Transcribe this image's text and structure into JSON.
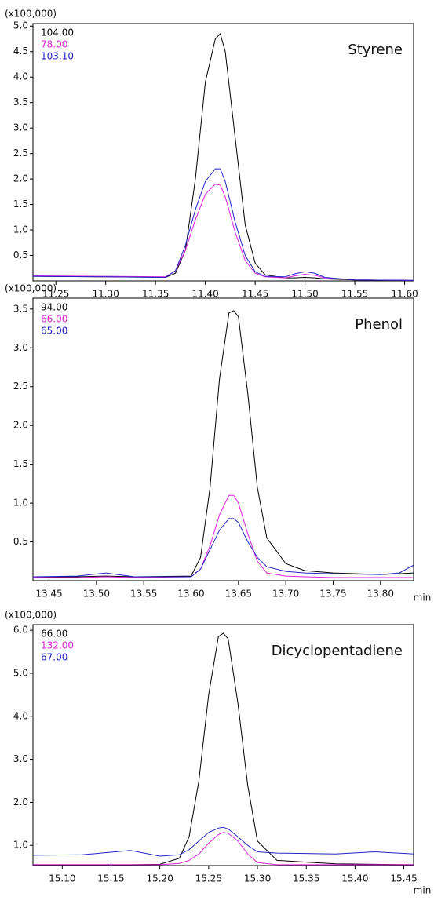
{
  "chart_data": [
    {
      "type": "line",
      "title": "Styrene",
      "y_label": "(x100,000)",
      "x": [
        11.227,
        11.3,
        11.36,
        11.37,
        11.38,
        11.39,
        11.4,
        11.41,
        11.415,
        11.42,
        11.43,
        11.44,
        11.45,
        11.46,
        11.48,
        11.49,
        11.5,
        11.51,
        11.52,
        11.55,
        11.609
      ],
      "series": [
        {
          "name": "104.00",
          "color": "#000000",
          "values": [
            0.09,
            0.08,
            0.07,
            0.15,
            0.6,
            2.0,
            3.9,
            4.75,
            4.85,
            4.5,
            2.8,
            1.1,
            0.35,
            0.12,
            0.06,
            0.06,
            0.07,
            0.06,
            0.04,
            0.02,
            0.01
          ]
        },
        {
          "name": "78.00",
          "color": "#e020e0",
          "values": [
            0.1,
            0.09,
            0.08,
            0.2,
            0.6,
            1.2,
            1.7,
            1.9,
            1.88,
            1.65,
            0.95,
            0.4,
            0.15,
            0.08,
            0.06,
            0.1,
            0.13,
            0.11,
            0.06,
            0.02,
            0.01
          ]
        },
        {
          "name": "103.10",
          "color": "#2323c8",
          "values": [
            0.09,
            0.08,
            0.07,
            0.2,
            0.7,
            1.4,
            1.95,
            2.2,
            2.2,
            1.95,
            1.15,
            0.5,
            0.18,
            0.09,
            0.08,
            0.14,
            0.18,
            0.15,
            0.07,
            0.02,
            0.01
          ]
        }
      ],
      "xlim": [
        11.227,
        11.609
      ],
      "xticks": [
        11.25,
        {
          "value": 11.3,
          "label": "11.30"
        },
        11.35,
        {
          "value": 11.4,
          "label": "11.40"
        },
        11.45,
        {
          "value": 11.5,
          "label": "11.50"
        },
        11.55,
        {
          "value": 11.6,
          "label": "11.60"
        }
      ],
      "ylim": [
        0,
        5.05
      ],
      "yticks": [
        0.5,
        {
          "value": 1,
          "label": "1.0"
        },
        1.5,
        {
          "value": 2,
          "label": "2.0"
        },
        2.5,
        {
          "value": 3,
          "label": "3.0"
        },
        3.5,
        {
          "value": 4,
          "label": "4.0"
        },
        4.5,
        {
          "value": 5,
          "label": "5.0"
        }
      ]
    },
    {
      "type": "line",
      "title": "Phenol",
      "y_label": "(x100,000)",
      "x_label": "min",
      "x": [
        13.433,
        13.48,
        13.51,
        13.54,
        13.6,
        13.61,
        13.62,
        13.63,
        13.64,
        13.645,
        13.65,
        13.66,
        13.67,
        13.68,
        13.7,
        13.72,
        13.75,
        13.8,
        13.82,
        13.835
      ],
      "series": [
        {
          "name": "94.00",
          "color": "#000000",
          "values": [
            0.05,
            0.05,
            0.06,
            0.05,
            0.06,
            0.3,
            1.2,
            2.6,
            3.45,
            3.48,
            3.4,
            2.4,
            1.2,
            0.55,
            0.22,
            0.13,
            0.1,
            0.08,
            0.09,
            0.1
          ]
        },
        {
          "name": "66.00",
          "color": "#e020e0",
          "values": [
            0.04,
            0.04,
            0.05,
            0.04,
            0.05,
            0.15,
            0.45,
            0.85,
            1.1,
            1.1,
            1.0,
            0.6,
            0.25,
            0.1,
            0.06,
            0.05,
            0.04,
            0.04,
            0.04,
            0.04
          ]
        },
        {
          "name": "65.00",
          "color": "#2323c8",
          "values": [
            0.05,
            0.06,
            0.1,
            0.05,
            0.05,
            0.15,
            0.4,
            0.65,
            0.8,
            0.8,
            0.75,
            0.5,
            0.3,
            0.18,
            0.12,
            0.1,
            0.09,
            0.08,
            0.1,
            0.2
          ]
        }
      ],
      "xlim": [
        13.433,
        13.835
      ],
      "xticks": [
        13.45,
        {
          "value": 13.5,
          "label": "13.50"
        },
        13.55,
        {
          "value": 13.6,
          "label": "13.60"
        },
        13.65,
        {
          "value": 13.7,
          "label": "13.70"
        },
        13.75,
        {
          "value": 13.8,
          "label": "13.80"
        }
      ],
      "ylim": [
        0,
        3.64
      ],
      "yticks": [
        0.5,
        {
          "value": 1,
          "label": "1.0"
        },
        1.5,
        {
          "value": 2,
          "label": "2.0"
        },
        2.5,
        {
          "value": 3,
          "label": "3.0"
        },
        3.5
      ]
    },
    {
      "type": "line",
      "title": "Dicyclopentadiene",
      "y_label": "(x100,000)",
      "x_label": "min",
      "x": [
        15.07,
        15.12,
        15.17,
        15.2,
        15.22,
        15.23,
        15.24,
        15.25,
        15.26,
        15.265,
        15.27,
        15.28,
        15.29,
        15.3,
        15.32,
        15.38,
        15.42,
        15.46
      ],
      "series": [
        {
          "name": "66.00",
          "color": "#000000",
          "values": [
            0.55,
            0.55,
            0.55,
            0.56,
            0.7,
            1.2,
            2.5,
            4.5,
            5.85,
            5.93,
            5.8,
            4.3,
            2.4,
            1.1,
            0.65,
            0.57,
            0.56,
            0.55
          ]
        },
        {
          "name": "132.00",
          "color": "#e020e0",
          "values": [
            0.55,
            0.55,
            0.55,
            0.55,
            0.58,
            0.65,
            0.8,
            1.05,
            1.25,
            1.3,
            1.28,
            1.1,
            0.8,
            0.6,
            0.55,
            0.55,
            0.55,
            0.55
          ]
        },
        {
          "name": "67.00",
          "color": "#2323c8",
          "values": [
            0.77,
            0.78,
            0.88,
            0.75,
            0.78,
            0.9,
            1.1,
            1.3,
            1.4,
            1.42,
            1.38,
            1.2,
            1.0,
            0.85,
            0.82,
            0.8,
            0.85,
            0.8
          ]
        }
      ],
      "xlim": [
        15.07,
        15.46
      ],
      "xticks": [
        {
          "value": 15.1,
          "label": "15.10"
        },
        15.15,
        {
          "value": 15.2,
          "label": "15.20"
        },
        15.25,
        {
          "value": 15.3,
          "label": "15.30"
        },
        15.35,
        {
          "value": 15.4,
          "label": "15.40"
        },
        15.45
      ],
      "ylim": [
        0.53,
        6.13
      ],
      "yticks": [
        {
          "value": 1,
          "label": "1.0"
        },
        {
          "value": 2,
          "label": "2.0"
        },
        {
          "value": 3,
          "label": "3.0"
        },
        {
          "value": 4,
          "label": "4.0"
        },
        {
          "value": 5,
          "label": "5.0"
        },
        {
          "value": 6,
          "label": "6.0"
        }
      ]
    }
  ]
}
